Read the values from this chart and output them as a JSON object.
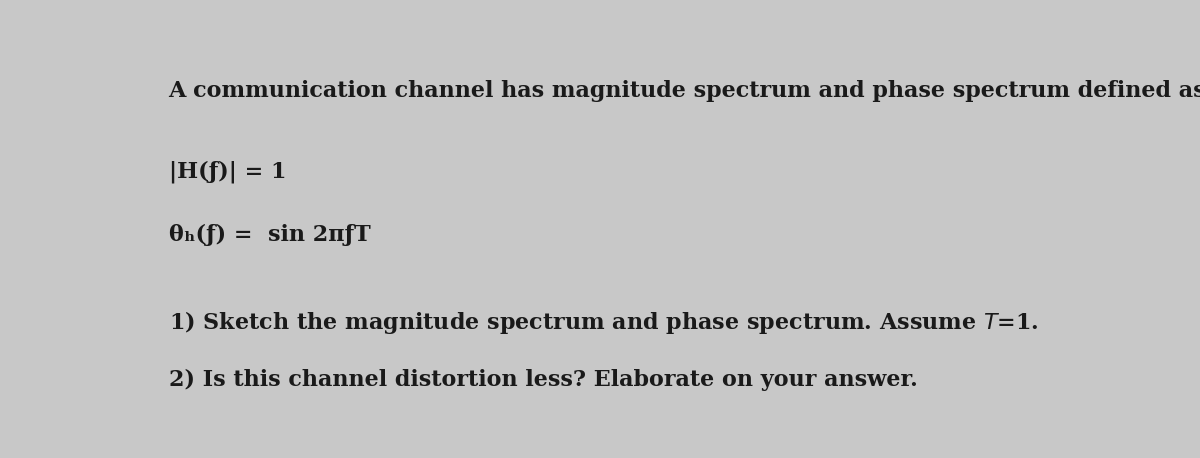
{
  "bg_color": "#c8c8c8",
  "text_color": "#1a1a1a",
  "title_text": "A communication channel has magnitude spectrum and phase spectrum defined as:",
  "eq1_plain": "|H(ƒ)| = 1",
  "eq2_plain": "θₕ(ƒ) =  sin 2πƒT",
  "question1": "1) Sketch the magnitude spectrum and phase spectrum. Assume $T$=1.",
  "question2": "2) Is this channel distortion less? Elaborate on your answer.",
  "title_fontsize": 16,
  "eq_fontsize": 16,
  "q_fontsize": 16,
  "figsize": [
    12.0,
    4.58
  ],
  "dpi": 100
}
